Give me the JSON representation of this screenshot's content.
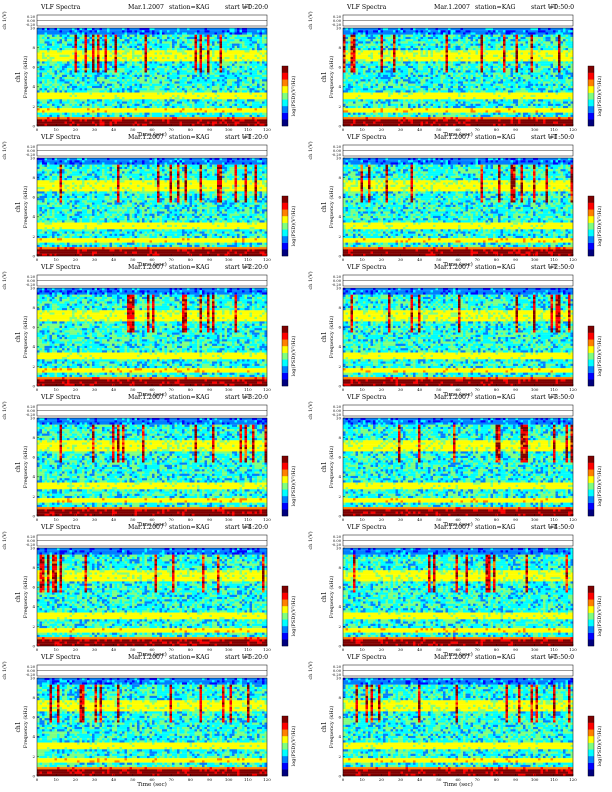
{
  "figure": {
    "title": "VLF Spectra",
    "date": "Mar.1.2007",
    "station": "station=KAG",
    "start_label": "start UT",
    "top_axis_label": "ch 1(V)",
    "freq_axis_label": "Frequency (kHz)",
    "channel_label": "ch1",
    "colorbar_label": "log(PSD)(V²/Hz)",
    "x_axis_label": "Time (sec)"
  },
  "panels": [
    {
      "ut": "=0:20:0"
    },
    {
      "ut": "=0:50:0"
    },
    {
      "ut": "=1:20:0"
    },
    {
      "ut": "=1:50:0"
    },
    {
      "ut": "=2:20:0"
    },
    {
      "ut": "=2:50:0"
    },
    {
      "ut": "=3:20:0"
    },
    {
      "ut": "=3:50:0"
    },
    {
      "ut": "=4:20:0"
    },
    {
      "ut": "=4:50:0"
    },
    {
      "ut": "=5:20:0"
    },
    {
      "ut": "=5:50:0"
    }
  ],
  "chart_data": {
    "type": "heatmap",
    "x_ticks": [
      0,
      10,
      20,
      30,
      40,
      50,
      60,
      70,
      80,
      90,
      100,
      110,
      120
    ],
    "xlim": [
      0,
      120
    ],
    "y_ticks": [
      0,
      2,
      4,
      6,
      8,
      10
    ],
    "ylim": [
      0,
      10
    ],
    "top_ticks": [
      "0.20",
      "0.00",
      "-0.20"
    ],
    "colorscale": [
      "#00007f",
      "#0000ff",
      "#007fff",
      "#00ffff",
      "#7fff7f",
      "#ffff00",
      "#ff7f00",
      "#ff0000",
      "#7f0000"
    ],
    "description_bands_khz": [
      0.4,
      0.9,
      1.6,
      3.0,
      7.2
    ]
  }
}
